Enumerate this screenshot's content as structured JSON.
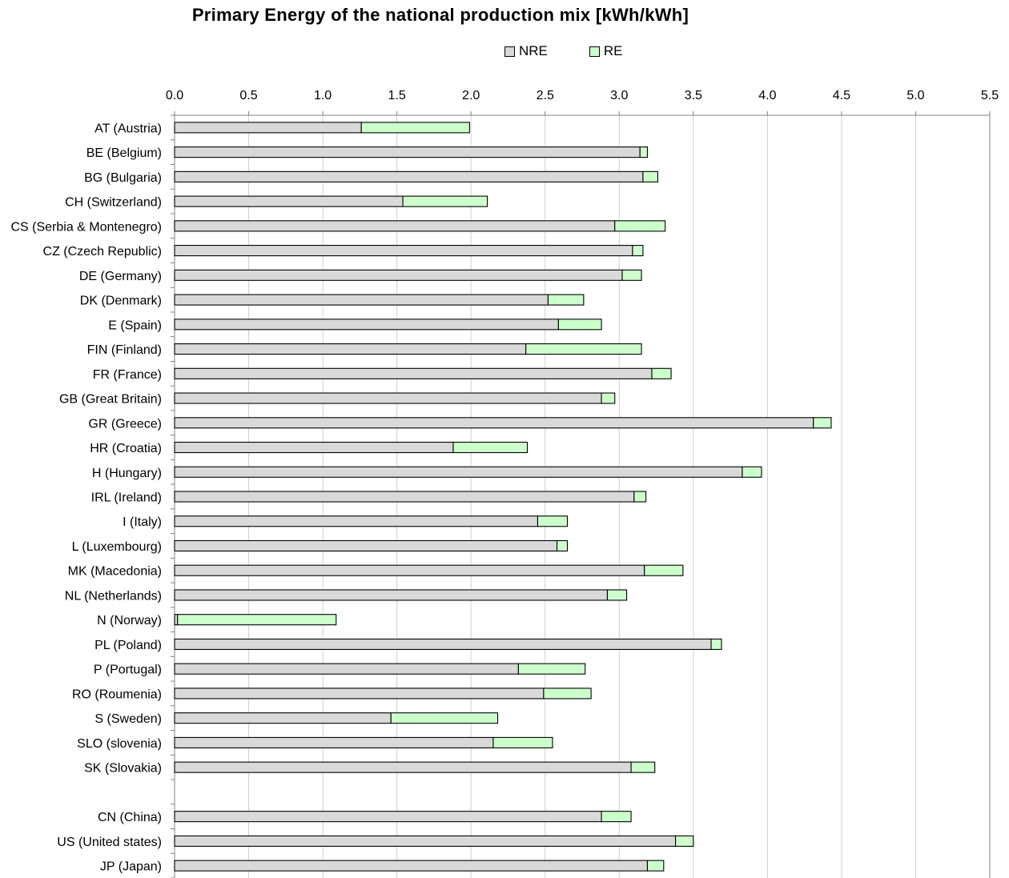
{
  "chart_data": {
    "type": "bar",
    "orientation": "horizontal",
    "stacked": true,
    "title": "Primary Energy  of the national  production  mix  [kWh/kWh]",
    "categories": [
      "AT (Austria)",
      "BE (Belgium)",
      "BG (Bulgaria)",
      "CH (Switzerland)",
      "CS (Serbia & Montenegro)",
      "CZ (Czech Republic)",
      "DE (Germany)",
      "DK (Denmark)",
      "E (Spain)",
      "FIN (Finland)",
      "FR (France)",
      "GB (Great Britain)",
      "GR (Greece)",
      "HR (Croatia)",
      "H (Hungary)",
      "IRL (Ireland)",
      "I (Italy)",
      "L (Luxembourg)",
      "MK (Macedonia)",
      "NL (Netherlands)",
      "N (Norway)",
      "PL (Poland)",
      "P (Portugal)",
      "RO (Roumenia)",
      "S (Sweden)",
      "SLO (slovenia)",
      "SK (Slovakia)",
      "",
      "CN  (China)",
      "US (United states)",
      "JP (Japan)"
    ],
    "series": [
      {
        "name": "NRE",
        "color": "#d9d9d9",
        "values": [
          1.26,
          3.14,
          3.16,
          1.54,
          2.97,
          3.09,
          3.02,
          2.52,
          2.59,
          2.37,
          3.22,
          2.88,
          4.31,
          1.88,
          3.83,
          3.1,
          2.45,
          2.58,
          3.17,
          2.92,
          0.02,
          3.62,
          2.32,
          2.49,
          1.46,
          2.15,
          3.08,
          null,
          2.88,
          3.38,
          3.19
        ]
      },
      {
        "name": "RE",
        "color": "#ccffcc",
        "values": [
          0.73,
          0.05,
          0.1,
          0.57,
          0.34,
          0.07,
          0.13,
          0.24,
          0.29,
          0.78,
          0.13,
          0.09,
          0.12,
          0.5,
          0.13,
          0.08,
          0.2,
          0.07,
          0.26,
          0.13,
          1.07,
          0.07,
          0.45,
          0.32,
          0.72,
          0.4,
          0.16,
          null,
          0.2,
          0.12,
          0.11
        ]
      }
    ],
    "xlim": [
      0,
      5.5
    ],
    "xticks": [
      "0.0",
      "0.5",
      "1.0",
      "1.5",
      "2.0",
      "2.5",
      "3.0",
      "3.5",
      "4.0",
      "4.5",
      "5.0",
      "5.5"
    ],
    "x_axis_position": "top",
    "grid": true,
    "legend_position": "top"
  }
}
